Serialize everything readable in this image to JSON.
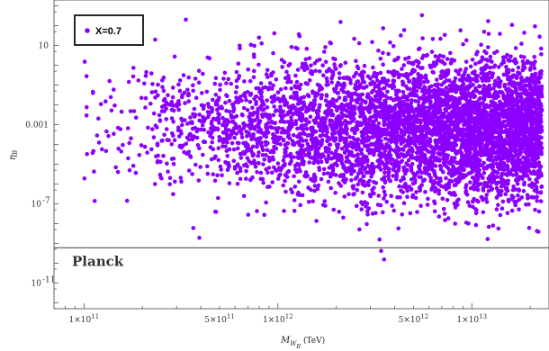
{
  "chart_data": {
    "type": "scatter",
    "title": "",
    "xlabel": "M_W_R (TeV)",
    "xlabel_main": "M",
    "xlabel_sub": "W",
    "xlabel_subsub": "R",
    "xlabel_unit": "(TeV)",
    "ylabel": "η_B",
    "ylabel_main": "η",
    "ylabel_sub": "B",
    "x_scale": "log",
    "y_scale": "log",
    "xlim": [
      70000000000.0,
      25000000000000.0
    ],
    "ylim": [
      5e-13,
      2000.0
    ],
    "x_ticks": [
      {
        "value": 100000000000.0,
        "label": "1×10",
        "exp": "11"
      },
      {
        "value": 500000000000.0,
        "label": "5×10",
        "exp": "11"
      },
      {
        "value": 1000000000000.0,
        "label": "1×10",
        "exp": "12"
      },
      {
        "value": 5000000000000.0,
        "label": "5×10",
        "exp": "12"
      },
      {
        "value": 10000000000000.0,
        "label": "1×10",
        "exp": "13"
      }
    ],
    "y_ticks": [
      {
        "value": 10,
        "label": "10",
        "exp": ""
      },
      {
        "value": 0.001,
        "label": "0.001",
        "exp": ""
      },
      {
        "value": 1e-07,
        "label": "10",
        "exp": "-7"
      },
      {
        "value": 1e-11,
        "label": "10",
        "exp": "-11"
      }
    ],
    "series": [
      {
        "name": "X=0.7",
        "color": "#8b00ff",
        "marker": "circle",
        "n_points": 5200,
        "x_range": [
          100000000000.0,
          23000000000000.0
        ],
        "y_log10_range": [
          -11.5,
          2.7
        ],
        "y_log10_center": -3.2,
        "density": "increasing with x"
      }
    ],
    "reference_line": {
      "label": "Planck",
      "y": 6e-10,
      "color": "#555555"
    },
    "legend": {
      "placement": "top-left",
      "entries": [
        "X=0.7"
      ]
    },
    "grid": false
  }
}
